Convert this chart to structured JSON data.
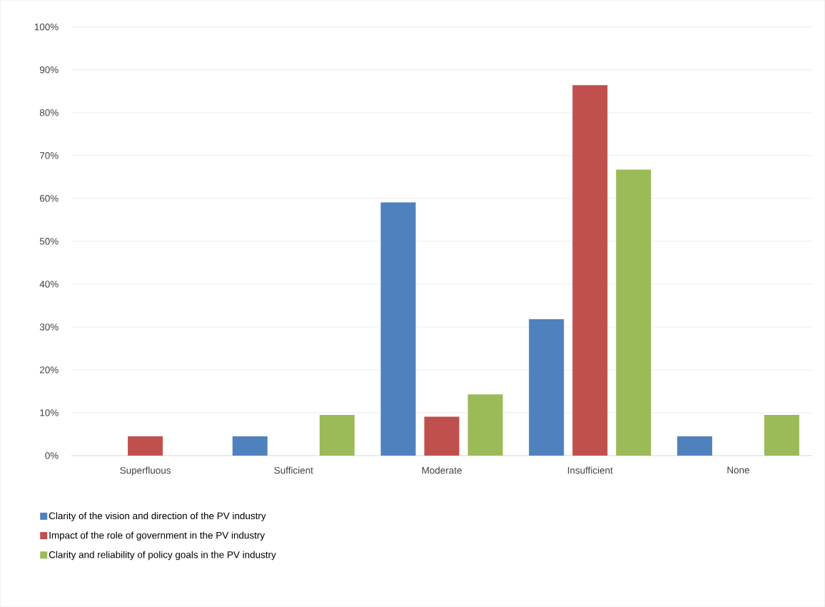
{
  "chart_data": {
    "type": "bar",
    "categories": [
      "Superfluous",
      "Sufficient",
      "Moderate",
      "Insufficient",
      "None"
    ],
    "series": [
      {
        "name": "Clarity of the vision and direction of the PV industry",
        "color": "#4f81bd",
        "values": [
          0,
          4.5,
          59.1,
          31.8,
          4.5
        ]
      },
      {
        "name": "Impact of the role of government in the PV industry",
        "color": "#c0504d",
        "values": [
          4.5,
          0,
          9.1,
          86.4,
          0
        ]
      },
      {
        "name": "Clarity and reliability of policy goals in the PV industry",
        "color": "#9bbb59",
        "values": [
          0,
          9.5,
          14.3,
          66.7,
          9.5
        ]
      }
    ],
    "ylim": [
      0,
      100
    ],
    "yticks": [
      {
        "value": 0,
        "label": "0%"
      },
      {
        "value": 10,
        "label": "10%"
      },
      {
        "value": 20,
        "label": "20%"
      },
      {
        "value": 30,
        "label": "30%"
      },
      {
        "value": 40,
        "label": "40%"
      },
      {
        "value": 50,
        "label": "50%"
      },
      {
        "value": 60,
        "label": "60%"
      },
      {
        "value": 70,
        "label": "70%"
      },
      {
        "value": 80,
        "label": "80%"
      },
      {
        "value": 90,
        "label": "90%"
      },
      {
        "value": 100,
        "label": "100%"
      }
    ],
    "grid": "y",
    "legend": "bottom"
  }
}
